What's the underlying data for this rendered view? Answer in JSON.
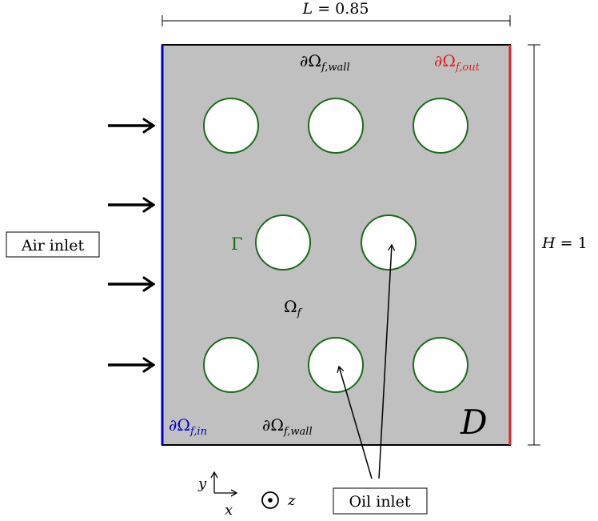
{
  "dimension_L": {
    "symbol": "L",
    "eq": " = 0.85"
  },
  "dimension_H": {
    "symbol": "H",
    "eq": " = 1"
  },
  "labels": {
    "wall_top": {
      "pre": "∂Ω",
      "sub": "f,wall"
    },
    "wall_bottom": {
      "pre": "∂Ω",
      "sub": "f,wall"
    },
    "outlet": {
      "pre": "∂Ω",
      "sub": "f,out"
    },
    "inlet": {
      "pre": "∂Ω",
      "sub": "f,in"
    },
    "fluid_domain": {
      "pre": "Ω",
      "sub": "f"
    },
    "interface": "Γ",
    "design_domain": "D",
    "air_inlet": "Air inlet",
    "oil_inlet": "Oil inlet",
    "axis_x": "x",
    "axis_y": "y",
    "axis_z": "z"
  },
  "colors": {
    "domain_fill": "#c0c0c0",
    "inlet_boundary": "#0000cc",
    "outlet_boundary": "#e02020",
    "circle_stroke": "#1a6b1a",
    "gamma_text": "#1a6b1a",
    "text": "#000000"
  },
  "icons": {
    "air_arrow": "right-arrow-icon",
    "out_of_plane": "circled-dot-icon"
  },
  "air_arrow_count": 4,
  "hole_count": 8
}
